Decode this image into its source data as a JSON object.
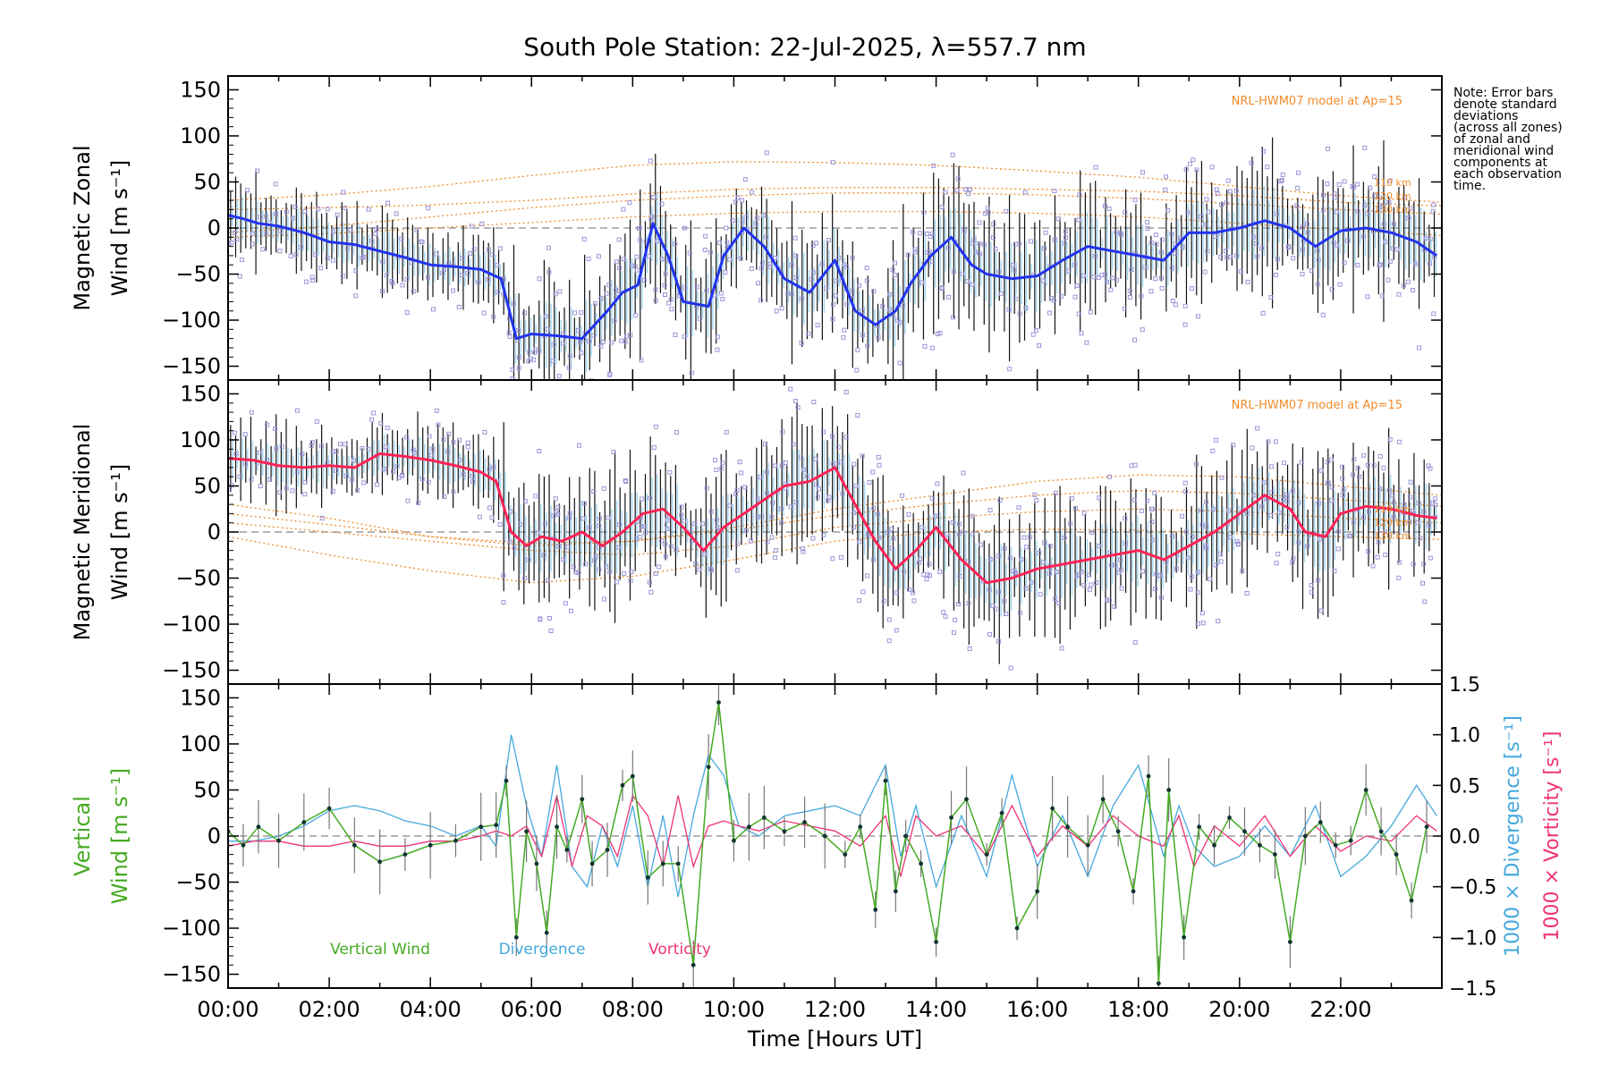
{
  "colors": {
    "zonal_line": "#2233ee",
    "meridional_line": "#ff2255",
    "vertical_wind": "#44aa22",
    "divergence": "#44a8dd",
    "vorticity": "#ee3377",
    "model": "#f08c2c",
    "scatter_squares": "#9a96d8",
    "error_bar": "#111111",
    "light_band": "#5ab8e8",
    "zero_line": "#888888"
  },
  "chart_data": [
    {
      "id": "zonal",
      "type": "line",
      "title": "South Pole Station: 22-Jul-2025, λ=557.7 nm",
      "ylabel_line1": "Magnetic Zonal",
      "ylabel_line2": "Wind [m s⁻¹]",
      "ylim": [
        -165,
        165
      ],
      "yticks": [
        -150,
        -100,
        -50,
        0,
        50,
        100,
        150
      ],
      "model_label": "NRL-HWM07 model at Ap=15",
      "altitude_labels": [
        "110 km",
        "120 km",
        "130 km"
      ],
      "series": [
        {
          "name": "Magnetic Zonal Wind",
          "x": [
            0.0,
            0.3,
            0.6,
            1.0,
            1.5,
            2.0,
            2.5,
            3.0,
            3.5,
            4.0,
            4.5,
            5.0,
            5.4,
            5.7,
            6.0,
            6.5,
            7.0,
            7.5,
            7.8,
            8.1,
            8.4,
            8.7,
            9.0,
            9.5,
            9.8,
            10.2,
            10.6,
            11.0,
            11.5,
            12.0,
            12.4,
            12.8,
            13.2,
            13.5,
            13.9,
            14.3,
            14.7,
            15.0,
            15.5,
            16.0,
            16.5,
            17.0,
            17.5,
            18.0,
            18.5,
            19.0,
            19.5,
            20.0,
            20.5,
            21.0,
            21.5,
            22.0,
            22.5,
            23.0,
            23.5,
            23.9
          ],
          "values": [
            14,
            10,
            5,
            2,
            -5,
            -15,
            -18,
            -25,
            -32,
            -40,
            -42,
            -45,
            -55,
            -120,
            -115,
            -117,
            -120,
            -90,
            -70,
            -62,
            5,
            -30,
            -80,
            -85,
            -30,
            0,
            -20,
            -55,
            -70,
            -35,
            -90,
            -105,
            -90,
            -60,
            -30,
            -10,
            -40,
            -50,
            -55,
            -52,
            -35,
            -20,
            -25,
            -30,
            -35,
            -5,
            -5,
            0,
            8,
            0,
            -20,
            -3,
            0,
            -5,
            -15,
            -30
          ]
        }
      ],
      "model_curves_ms": {
        "x": [
          0,
          2,
          4,
          6,
          8,
          10,
          12,
          14,
          16,
          18,
          20,
          22,
          24
        ],
        "top": [
          30,
          36,
          45,
          57,
          68,
          72,
          71,
          68,
          62,
          55,
          45,
          35,
          28
        ],
        "mid1": [
          20,
          22,
          25,
          30,
          37,
          42,
          44,
          44,
          42,
          40,
          35,
          28,
          24
        ],
        "mid2": [
          -5,
          2,
          12,
          22,
          30,
          35,
          38,
          38,
          36,
          32,
          26,
          20,
          15
        ],
        "low": [
          -10,
          -6,
          0,
          6,
          12,
          16,
          18,
          18,
          16,
          12,
          5,
          -2,
          -8
        ]
      }
    },
    {
      "id": "meridional",
      "type": "line",
      "ylabel_line1": "Magnetic Meridional",
      "ylabel_line2": "Wind [m s⁻¹]",
      "ylim": [
        -165,
        165
      ],
      "yticks": [
        -150,
        -100,
        -50,
        0,
        50,
        100,
        150
      ],
      "model_label": "NRL-HWM07 model at Ap=15",
      "altitude_labels": [
        "110 km",
        "120 km",
        "130 km"
      ],
      "series": [
        {
          "name": "Magnetic Meridional Wind",
          "x": [
            0.0,
            0.5,
            1.0,
            1.5,
            2.0,
            2.5,
            3.0,
            3.5,
            4.0,
            4.5,
            5.0,
            5.3,
            5.6,
            5.9,
            6.2,
            6.6,
            7.0,
            7.4,
            7.8,
            8.2,
            8.6,
            9.0,
            9.4,
            9.8,
            10.2,
            10.6,
            11.0,
            11.5,
            12.0,
            12.4,
            12.8,
            13.2,
            13.6,
            14.0,
            14.5,
            15.0,
            15.5,
            16.0,
            16.5,
            17.0,
            17.5,
            18.0,
            18.5,
            19.0,
            19.5,
            20.0,
            20.5,
            21.0,
            21.3,
            21.7,
            22.0,
            22.5,
            23.0,
            23.5,
            23.9
          ],
          "values": [
            80,
            78,
            72,
            70,
            72,
            70,
            85,
            82,
            78,
            72,
            65,
            55,
            0,
            -15,
            -5,
            -10,
            0,
            -15,
            0,
            20,
            25,
            5,
            -20,
            5,
            20,
            35,
            50,
            55,
            70,
            30,
            -10,
            -40,
            -20,
            5,
            -30,
            -55,
            -50,
            -40,
            -35,
            -30,
            -25,
            -20,
            -30,
            -15,
            0,
            20,
            40,
            25,
            0,
            -5,
            20,
            28,
            25,
            18,
            15
          ]
        }
      ],
      "model_curves_ms": {
        "x": [
          0,
          2,
          4,
          6,
          8,
          10,
          12,
          14,
          16,
          18,
          20,
          22,
          24
        ],
        "top": [
          30,
          15,
          -5,
          -15,
          -10,
          5,
          25,
          40,
          55,
          62,
          60,
          50,
          40
        ],
        "mid1": [
          20,
          8,
          -5,
          -12,
          -10,
          2,
          18,
          30,
          40,
          45,
          42,
          35,
          28
        ],
        "mid2": [
          10,
          0,
          -10,
          -20,
          -25,
          -15,
          5,
          15,
          22,
          25,
          22,
          15,
          10
        ],
        "low": [
          -5,
          -25,
          -42,
          -55,
          -48,
          -30,
          -10,
          0,
          3,
          2,
          -2,
          -5,
          -8
        ]
      }
    },
    {
      "id": "vertical",
      "type": "line",
      "ylabel_line1": "Vertical",
      "ylabel_line2": "Wind [m s⁻¹]",
      "ylim": [
        -165,
        165
      ],
      "yticks": [
        -150,
        -100,
        -50,
        0,
        50,
        100,
        150
      ],
      "y2lim": [
        -1.5,
        1.5
      ],
      "y2ticks": [
        -1.5,
        -1.0,
        -0.5,
        0.0,
        0.5,
        1.0,
        1.5
      ],
      "y2tick_labels": [
        "−1.5",
        "−1.0",
        "−0.5",
        "0.0",
        "0.5",
        "1.0",
        "1.5"
      ],
      "y2label_divergence": "1000 × Divergence [s⁻¹]",
      "y2label_vorticity": "1000 × Vorticity [s⁻¹]",
      "legend": [
        "Vertical Wind",
        "Divergence",
        "Vorticity"
      ],
      "series": [
        {
          "name": "Vertical Wind",
          "x": [
            0.0,
            0.3,
            0.6,
            1.0,
            1.5,
            2.0,
            2.5,
            3.0,
            3.5,
            4.0,
            4.5,
            5.0,
            5.3,
            5.5,
            5.7,
            5.9,
            6.1,
            6.3,
            6.5,
            6.7,
            7.0,
            7.2,
            7.5,
            7.8,
            8.0,
            8.3,
            8.6,
            8.9,
            9.2,
            9.5,
            9.7,
            10.0,
            10.3,
            10.6,
            11.0,
            11.4,
            11.8,
            12.2,
            12.5,
            12.8,
            13.0,
            13.2,
            13.4,
            13.7,
            14.0,
            14.3,
            14.6,
            15.0,
            15.3,
            15.6,
            16.0,
            16.3,
            16.6,
            17.0,
            17.3,
            17.6,
            17.9,
            18.2,
            18.4,
            18.6,
            18.9,
            19.2,
            19.5,
            19.8,
            20.1,
            20.4,
            20.7,
            21.0,
            21.3,
            21.6,
            21.9,
            22.2,
            22.5,
            22.8,
            23.1,
            23.4,
            23.7
          ],
          "values": [
            5,
            -10,
            10,
            -5,
            15,
            30,
            -10,
            -28,
            -20,
            -10,
            -5,
            10,
            12,
            60,
            -110,
            5,
            -30,
            -105,
            10,
            -15,
            40,
            -30,
            -15,
            55,
            65,
            -45,
            -30,
            -30,
            -140,
            75,
            145,
            -5,
            10,
            20,
            5,
            15,
            0,
            -20,
            10,
            -80,
            60,
            -60,
            0,
            -30,
            -115,
            20,
            40,
            -20,
            25,
            -100,
            -60,
            30,
            10,
            -10,
            40,
            5,
            -60,
            65,
            -160,
            50,
            -110,
            10,
            -10,
            20,
            5,
            -10,
            -20,
            -115,
            0,
            15,
            -10,
            -5,
            50,
            5,
            -20,
            -70,
            10
          ]
        },
        {
          "name": "Divergence",
          "x": [
            0.0,
            0.5,
            1.0,
            1.5,
            2.0,
            2.5,
            3.0,
            3.5,
            4.0,
            4.5,
            5.0,
            5.3,
            5.6,
            5.9,
            6.2,
            6.5,
            6.8,
            7.1,
            7.4,
            7.7,
            8.0,
            8.3,
            8.6,
            8.9,
            9.2,
            9.5,
            9.8,
            10.1,
            10.5,
            11.0,
            11.5,
            12.0,
            12.5,
            13.0,
            13.3,
            13.6,
            14.0,
            14.5,
            15.0,
            15.5,
            16.0,
            16.5,
            17.0,
            17.5,
            18.0,
            18.5,
            18.8,
            19.1,
            19.5,
            20.0,
            20.5,
            21.0,
            21.5,
            22.0,
            22.5,
            23.0,
            23.5,
            23.9
          ],
          "values": [
            -0.05,
            -0.05,
            0.0,
            0.1,
            0.25,
            0.3,
            0.25,
            0.15,
            0.1,
            0.0,
            0.1,
            -0.1,
            1.0,
            0.3,
            -0.2,
            0.7,
            -0.3,
            -0.5,
            0.1,
            -0.3,
            0.3,
            -0.5,
            0.2,
            -0.6,
            0.2,
            0.8,
            0.6,
            0.1,
            0.0,
            0.2,
            0.25,
            0.3,
            0.2,
            0.7,
            -0.2,
            0.3,
            -0.5,
            0.2,
            -0.4,
            0.6,
            -0.3,
            0.2,
            -0.4,
            0.3,
            0.7,
            -0.2,
            0.3,
            -0.1,
            -0.3,
            -0.2,
            0.1,
            -0.2,
            0.3,
            -0.4,
            -0.2,
            0.1,
            0.5,
            0.2
          ]
        },
        {
          "name": "Vorticity",
          "x": [
            0.0,
            0.5,
            1.0,
            1.5,
            2.0,
            2.5,
            3.0,
            3.5,
            4.0,
            4.5,
            5.0,
            5.3,
            5.6,
            5.9,
            6.2,
            6.5,
            6.8,
            7.1,
            7.4,
            7.7,
            8.0,
            8.3,
            8.6,
            8.9,
            9.2,
            9.5,
            9.8,
            10.1,
            10.5,
            11.0,
            11.5,
            12.0,
            12.5,
            13.0,
            13.3,
            13.6,
            14.0,
            14.5,
            15.0,
            15.5,
            16.0,
            16.5,
            17.0,
            17.5,
            18.0,
            18.5,
            18.8,
            19.1,
            19.5,
            20.0,
            20.5,
            21.0,
            21.5,
            22.0,
            22.5,
            23.0,
            23.5,
            23.9
          ],
          "values": [
            -0.1,
            -0.05,
            -0.05,
            -0.1,
            -0.1,
            -0.05,
            -0.1,
            -0.1,
            -0.05,
            -0.05,
            0.0,
            0.05,
            0.0,
            0.1,
            -0.2,
            0.4,
            -0.3,
            0.2,
            0.1,
            -0.2,
            0.4,
            0.2,
            -0.3,
            0.4,
            -0.3,
            0.1,
            0.15,
            0.1,
            0.05,
            0.15,
            0.1,
            0.05,
            -0.1,
            0.2,
            -0.4,
            0.2,
            0.0,
            0.1,
            -0.2,
            0.3,
            -0.2,
            0.1,
            -0.1,
            0.2,
            0.0,
            -0.1,
            0.2,
            -0.3,
            0.1,
            -0.1,
            0.2,
            -0.2,
            0.1,
            -0.15,
            0.0,
            -0.05,
            0.2,
            0.05
          ]
        }
      ]
    }
  ],
  "x_axis": {
    "xlabel": "Time [Hours UT]",
    "xlim": [
      0,
      24
    ],
    "ticks": [
      0,
      2,
      4,
      6,
      8,
      10,
      12,
      14,
      16,
      18,
      20,
      22
    ],
    "tick_labels": [
      "00:00",
      "02:00",
      "04:00",
      "06:00",
      "08:00",
      "10:00",
      "12:00",
      "14:00",
      "16:00",
      "18:00",
      "20:00",
      "22:00"
    ]
  },
  "note": {
    "lines": [
      "Note: Error bars",
      "denote standard",
      "deviations",
      "(across all zones)",
      "of zonal and",
      "meridional wind",
      "components at",
      "each observation",
      "time."
    ]
  }
}
